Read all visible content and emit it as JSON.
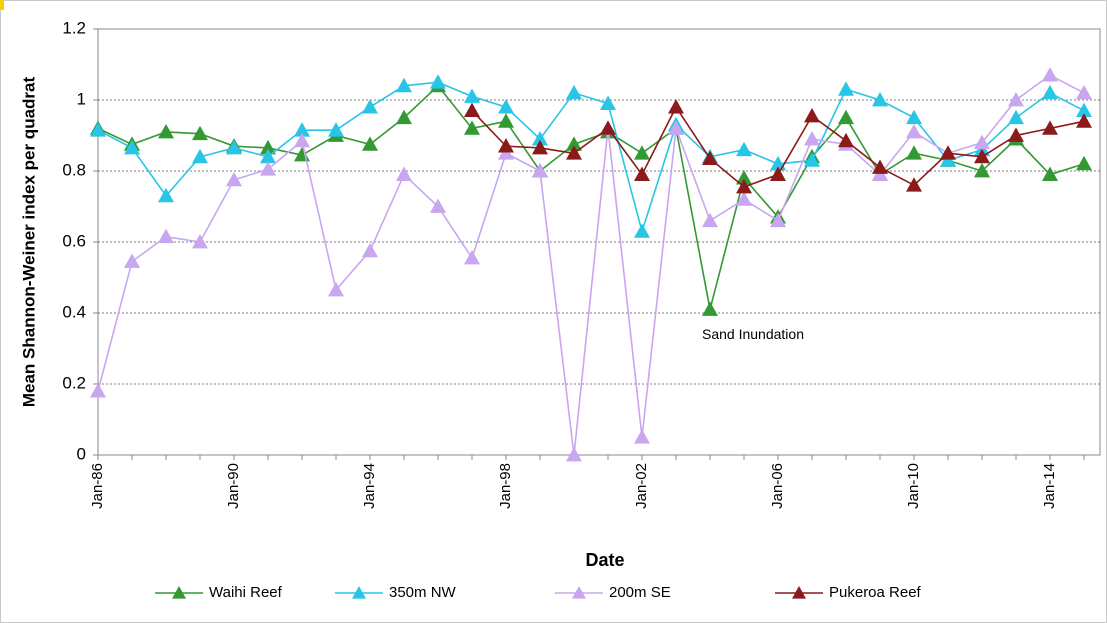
{
  "chart_data": {
    "type": "line",
    "x_label": "Date",
    "y_label": "Mean Shannon-Weiner index per quadrat",
    "categories": [
      "Jan-86",
      null,
      null,
      null,
      "Jan-90",
      null,
      null,
      null,
      "Jan-94",
      null,
      null,
      null,
      "Jan-98",
      null,
      null,
      null,
      "Jan-02",
      null,
      null,
      null,
      "Jan-06",
      null,
      null,
      null,
      "Jan-10",
      null,
      null,
      null,
      "Jan-14",
      null
    ],
    "ylim": [
      0,
      1.2
    ],
    "yticks": [
      0,
      0.2,
      0.4,
      0.6,
      0.8,
      1,
      1.2
    ],
    "grid": true,
    "legend": "bottom",
    "annotations": [
      {
        "text": "Sand Inundation",
        "series": 0,
        "index": 18
      }
    ],
    "series": [
      {
        "name": "Waihi Reef",
        "color": "#339933",
        "values": [
          0.92,
          0.875,
          0.91,
          0.905,
          0.87,
          0.865,
          0.845,
          0.9,
          0.875,
          0.95,
          1.04,
          0.92,
          0.94,
          0.8,
          0.875,
          0.91,
          0.85,
          0.92,
          0.41,
          0.78,
          0.67,
          0.84,
          0.95,
          0.79,
          0.85,
          0.83,
          0.8,
          0.89,
          0.79,
          0.82
        ]
      },
      {
        "name": "350m NW",
        "color": "#29c5e6",
        "values": [
          0.915,
          0.865,
          0.73,
          0.84,
          0.865,
          0.84,
          0.915,
          0.915,
          0.98,
          1.04,
          1.05,
          1.01,
          0.98,
          0.89,
          1.02,
          0.99,
          0.63,
          0.93,
          0.84,
          0.86,
          0.82,
          0.83,
          1.03,
          1.0,
          0.95,
          0.83,
          0.86,
          0.95,
          1.02,
          0.97
        ]
      },
      {
        "name": "200m SE",
        "color": "#c9a6f0",
        "values": [
          0.18,
          0.545,
          0.615,
          0.6,
          0.775,
          0.805,
          0.885,
          0.465,
          0.575,
          0.79,
          0.7,
          0.555,
          0.85,
          0.8,
          0,
          0.92,
          0.05,
          0.92,
          0.66,
          0.72,
          0.66,
          0.89,
          0.875,
          0.79,
          0.91,
          0.85,
          0.88,
          1.0,
          1.07,
          1.02
        ]
      },
      {
        "name": "Pukeroa Reef",
        "color": "#8b1a1a",
        "values": [
          null,
          null,
          null,
          null,
          null,
          null,
          null,
          null,
          null,
          null,
          null,
          0.97,
          0.87,
          0.865,
          0.85,
          0.92,
          0.79,
          0.98,
          0.835,
          0.755,
          0.79,
          0.955,
          0.885,
          0.81,
          0.76,
          0.85,
          0.84,
          0.9,
          0.92,
          0.94
        ]
      }
    ]
  }
}
